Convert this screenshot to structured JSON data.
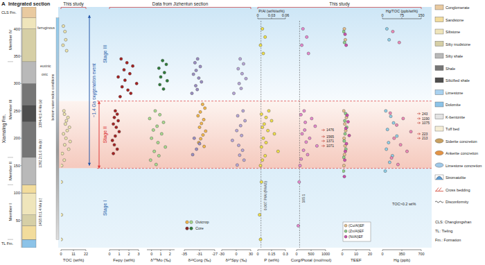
{
  "panel_label": "A",
  "title": "Integrated section",
  "headers": [
    "This study",
    "Data from Jizhentun section",
    "This study"
  ],
  "column": {
    "ylim": [
      0,
      440
    ],
    "yticks": [
      50,
      100,
      150,
      200,
      250,
      300,
      350,
      400
    ],
    "formations": [
      {
        "label": "CLS Fm.",
        "from": 420,
        "to": 440
      },
      {
        "label": "Xiamaling Fm.",
        "from": 15,
        "to": 420
      },
      {
        "label": "TL Fm.",
        "from": 0,
        "to": 15
      }
    ],
    "members": [
      {
        "label": "Member IV",
        "from": 340,
        "to": 420
      },
      {
        "label": "Member III",
        "from": 165,
        "to": 340
      },
      {
        "label": "Member II",
        "from": 115,
        "to": 165
      },
      {
        "label": "Member I",
        "from": 15,
        "to": 115
      }
    ],
    "layers": [
      {
        "from": 0,
        "to": 15,
        "lithology": "Dolomite"
      },
      {
        "from": 15,
        "to": 40,
        "lithology": "Sandstone"
      },
      {
        "from": 40,
        "to": 60,
        "lithology": "Silty mudstone"
      },
      {
        "from": 60,
        "to": 100,
        "lithology": "Siltstone"
      },
      {
        "from": 100,
        "to": 115,
        "lithology": "Sandstone"
      },
      {
        "from": 115,
        "to": 165,
        "lithology": "Silty shale"
      },
      {
        "from": 165,
        "to": 230,
        "lithology": "Shale"
      },
      {
        "from": 230,
        "to": 260,
        "lithology": "Silicified shale"
      },
      {
        "from": 260,
        "to": 300,
        "lithology": "Shale"
      },
      {
        "from": 300,
        "to": 340,
        "lithology": "Silty shale"
      },
      {
        "from": 340,
        "to": 400,
        "lithology": "Silty mudstone"
      },
      {
        "from": 400,
        "to": 420,
        "lithology": "Siltstone"
      },
      {
        "from": 420,
        "to": 440,
        "lithology": "Conglomerate"
      }
    ],
    "notes": [
      "ferruginous",
      "euxinic",
      "oxic",
      "bottom water redox conditions"
    ],
    "ages": [
      "1384.4±1.4 Ma (a)",
      "1392.2±1.0 Ma (b)",
      "1418.8±1.4 Ma (c)"
    ]
  },
  "stages": [
    {
      "label": "Stage III",
      "from": 268,
      "to": 440
    },
    {
      "label": "Stage II",
      "from": 145,
      "to": 268
    },
    {
      "label": "Stage I",
      "from": 0,
      "to": 145
    }
  ],
  "event": {
    "label": "~1.4 Ga oxygenation event",
    "from": 150,
    "to": 425
  },
  "source_legend": [
    {
      "name": "Outcrop",
      "colors": [
        "#f6b84a",
        "#a9dc8f"
      ]
    },
    {
      "name": "Core",
      "colors": [
        "#8b2323",
        "#2e7d3a"
      ]
    }
  ],
  "lithology_legend": [
    {
      "name": "Conglomerate",
      "color": "#e9caa0"
    },
    {
      "name": "Sandstone",
      "color": "#f2dc9c"
    },
    {
      "name": "Siltstone",
      "color": "#efe5bb"
    },
    {
      "name": "Silty mudstone",
      "color": "#d6cfa6"
    },
    {
      "name": "Silty shale",
      "color": "#b9b9b9"
    },
    {
      "name": "Shale",
      "color": "#767676"
    },
    {
      "name": "Silicified shale",
      "color": "#4e4e4e"
    },
    {
      "name": "Limestone",
      "color": "#a9d2f0"
    },
    {
      "name": "Dolomite",
      "color": "#8cc3e8"
    },
    {
      "name": "K-bentonite",
      "color": "#e3e3e3"
    },
    {
      "name": "Tuff bed",
      "color": "#f6eed6"
    },
    {
      "name": "Siderite concretion",
      "color": "#c9a060",
      "marker": "ellipse"
    },
    {
      "name": "Ankerite concretion",
      "color": "#e39345",
      "marker": "ellipse"
    },
    {
      "name": "Limestone concretion",
      "color": "#9fc8e8",
      "marker": "ellipse"
    },
    {
      "name": "Stromatolite",
      "color": "#5f9bd0",
      "marker": "arc"
    },
    {
      "name": "Cross bedding",
      "color": "#d04030",
      "marker": "cross"
    },
    {
      "name": "Disconformity",
      "color": "#333333",
      "marker": "wave"
    }
  ],
  "abbreviations": [
    "CLS: Changlongshan",
    "TL: Tieling",
    "Fm.: Formation"
  ],
  "chart_data": [
    {
      "type": "scatter",
      "xlabel": "TOC (wt%)",
      "xlim": [
        0,
        22
      ],
      "xticks": [
        0,
        11,
        22
      ],
      "ylim": [
        0,
        440
      ],
      "tick_labels": "x",
      "series": [
        {
          "color": "#efe6b0",
          "marker": "circle",
          "x": [
            2.1,
            3.5,
            4.2,
            1.8,
            5.0,
            2.6,
            3.1,
            6.2,
            4.8,
            3.9,
            7.5,
            5.5,
            2.2,
            4.4,
            8.1,
            3.3,
            6.8,
            1.2,
            2.9,
            0.6,
            0.3,
            0.4,
            0.2
          ],
          "y": [
            405,
            395,
            380,
            370,
            360,
            250,
            244,
            238,
            232,
            226,
            220,
            214,
            208,
            200,
            194,
            188,
            180,
            172,
            160,
            150,
            120,
            60,
            15
          ]
        }
      ]
    },
    {
      "type": "scatter",
      "xlabel": "Fepy (wt%)",
      "xlim": [
        0,
        3
      ],
      "xticks": [
        0,
        1,
        2,
        3
      ],
      "ylim": [
        0,
        440
      ],
      "tick_labels": "x",
      "series": [
        {
          "color": "#a82020",
          "marker": "circle",
          "x": [
            1.2,
            1.8,
            2.4,
            1.5,
            2.1,
            0.9,
            1.6,
            2.8,
            1.3,
            1.9,
            2.2,
            1.1,
            0.6,
            0.8,
            0.5,
            0.9,
            0.4,
            0.7,
            1.0,
            0.6,
            0.3,
            0.5,
            0.8,
            0.4
          ],
          "y": [
            345,
            338,
            332,
            325,
            318,
            312,
            306,
            300,
            294,
            288,
            282,
            276,
            250,
            244,
            238,
            232,
            226,
            220,
            212,
            204,
            196,
            188,
            180,
            172
          ]
        }
      ]
    },
    {
      "type": "scatter",
      "xlabel": "δ⁹⁸Mo (‰)",
      "xlim": [
        -0.5,
        2.5
      ],
      "xticks": [
        0,
        1,
        2
      ],
      "ylim": [
        0,
        440
      ],
      "tick_labels": "x",
      "series": [
        {
          "color": "#a9dc8f",
          "marker": "circle",
          "x": [
            0.4,
            0.9,
            -0.2,
            1.3,
            0.6,
            0.2,
            1.1,
            0.0,
            0.7,
            1.5,
            0.3,
            0.8,
            -0.1,
            0.5
          ],
          "y": [
            250,
            243,
            236,
            229,
            222,
            215,
            208,
            200,
            192,
            184,
            176,
            168,
            160,
            152
          ]
        },
        {
          "color": "#2e7d3a",
          "marker": "circle",
          "x": [
            1.2,
            1.6,
            0.8,
            1.4,
            1.0,
            1.7,
            0.9,
            1.3
          ],
          "y": [
            342,
            335,
            328,
            320,
            312,
            305,
            298,
            290
          ]
        }
      ]
    },
    {
      "type": "scatter",
      "xlabel": "δ¹³Corg (‰)",
      "xlim": [
        -35,
        -27
      ],
      "xticks": [
        -35,
        -31,
        -27
      ],
      "ylim": [
        0,
        440
      ],
      "tick_labels": "x",
      "series": [
        {
          "color": "#f6b84a",
          "marker": "circle",
          "x": [
            -30.2,
            -29.6,
            -30.8,
            -31.4,
            -29.9,
            -30.5,
            -31.0,
            -29.4,
            -30.1,
            -30.7,
            -31.2,
            -29.8
          ],
          "y": [
            262,
            255,
            248,
            241,
            234,
            227,
            220,
            213,
            206,
            199,
            192,
            185
          ]
        },
        {
          "color": "#9b8fc4",
          "marker": "circle",
          "x": [
            -31.5,
            -32.2,
            -30.8,
            -31.9,
            -32.6,
            -31.2,
            -30.5,
            -32.0,
            -31.6,
            -33.0,
            -32.4,
            -31.0,
            -31.8,
            -32.8
          ],
          "y": [
            345,
            338,
            331,
            324,
            317,
            310,
            303,
            296,
            289,
            282,
            200,
            190,
            180,
            170
          ]
        }
      ]
    },
    {
      "type": "scatter",
      "xlabel": "δ³⁴Spy (‰)",
      "xlim": [
        -30,
        30
      ],
      "xticks": [
        -30,
        0,
        30
      ],
      "ylim": [
        0,
        440
      ],
      "tick_labels": "x",
      "series": [
        {
          "color": "#b7a7d8",
          "marker": "circle",
          "x": [
            8,
            15,
            4,
            12,
            20,
            6,
            10,
            -5,
            14,
            3,
            18,
            9,
            1,
            11,
            -8,
            5,
            13,
            7,
            16,
            2
          ],
          "y": [
            345,
            336,
            327,
            318,
            309,
            300,
            291,
            282,
            250,
            241,
            232,
            223,
            214,
            205,
            196,
            187,
            178,
            169,
            160,
            151
          ]
        }
      ]
    },
    {
      "type": "scatter",
      "xlabel": "P (wt%)",
      "xlim": [
        0,
        0.3
      ],
      "xticks": [
        0,
        0.15,
        0.3
      ],
      "ylim": [
        0,
        440
      ],
      "tick_labels": "x",
      "x2label": "P/Al (wt%/wt%)",
      "x2lim": [
        0,
        0.06
      ],
      "x2ticks": [
        0,
        0.03,
        0.06
      ],
      "reference_lines": [
        {
          "value": 0.007,
          "axis": "x2",
          "label": "0.007 P/Al (PAAS)"
        }
      ],
      "series": [
        {
          "color": "#f2e24a",
          "marker": "circle",
          "x": [
            0.05,
            0.08,
            0.03,
            0.06,
            0.12,
            0.04,
            0.09,
            0.15,
            0.07,
            0.05,
            0.11,
            0.18,
            0.06,
            0.09,
            0.04,
            0.22,
            0.08,
            0.05,
            0.03,
            0.04,
            0.02,
            0.03
          ],
          "y": [
            400,
            385,
            370,
            355,
            250,
            244,
            238,
            232,
            226,
            220,
            214,
            208,
            200,
            192,
            184,
            176,
            168,
            160,
            150,
            120,
            60,
            15
          ]
        }
      ]
    },
    {
      "type": "scatter",
      "xlabel": "Corg/Ptotal (mol/mol)",
      "xlim": [
        0,
        1000
      ],
      "xticks": [
        0,
        500,
        1000
      ],
      "ylim": [
        0,
        440
      ],
      "tick_labels": "x",
      "reference_lines": [
        {
          "value": 105,
          "label": "105:1"
        }
      ],
      "outliers": [
        {
          "y": 215,
          "value": 1476
        },
        {
          "y": 203,
          "value": 1565
        },
        {
          "y": 195,
          "value": 1371
        },
        {
          "y": 186,
          "value": 1071
        }
      ],
      "series": [
        {
          "color": "#e88ad0",
          "marker": "circle",
          "x": [
            220,
            350,
            180,
            410,
            260,
            150,
            520,
            300,
            640,
            280,
            190,
            450,
            330,
            700,
            240,
            380,
            160,
            120,
            90,
            60
          ],
          "y": [
            400,
            385,
            370,
            355,
            250,
            243,
            236,
            229,
            222,
            215,
            208,
            200,
            193,
            186,
            178,
            170,
            162,
            150,
            120,
            40
          ]
        }
      ]
    },
    {
      "type": "scatter",
      "xlabel": "TEEF",
      "xlim": [
        0,
        20
      ],
      "xticks": [
        0,
        10,
        20
      ],
      "ylim": [
        0,
        440
      ],
      "tick_labels": "x",
      "series": [
        {
          "name": "(Cu/Al)EF",
          "color": "#e9c38f",
          "marker": "circle",
          "x": [
            1.5,
            2.2,
            1.1,
            3.0,
            1.8,
            2.5,
            1.3,
            2.0,
            1.6,
            1.2
          ],
          "y": [
            400,
            380,
            250,
            238,
            226,
            214,
            200,
            186,
            170,
            150
          ]
        },
        {
          "name": "(Zn/Al)EF",
          "color": "#8fd18a",
          "marker": "circle",
          "x": [
            1.0,
            1.6,
            2.4,
            1.8,
            3.2,
            2.0,
            1.4,
            2.6,
            1.1,
            0.9
          ],
          "y": [
            395,
            375,
            245,
            232,
            220,
            208,
            195,
            180,
            165,
            140
          ]
        },
        {
          "name": "(Ni/Al)EF",
          "color": "#d04fb0",
          "marker": "circle",
          "x": [
            2.0,
            2.8,
            3.5,
            4.2,
            2.6,
            5.0,
            3.0,
            2.2,
            1.8,
            1.5
          ],
          "y": [
            390,
            370,
            242,
            230,
            218,
            205,
            190,
            176,
            160,
            130
          ]
        }
      ]
    },
    {
      "type": "scatter",
      "xlabel": "Hg (ppb)",
      "xlim": [
        0,
        700
      ],
      "xticks": [
        0,
        350,
        700
      ],
      "ylim": [
        0,
        440
      ],
      "tick_labels": "x",
      "x2label": "Hg/TOC (ppb/wt%)",
      "x2lim": [
        0,
        150
      ],
      "x2ticks": [
        0,
        75,
        150
      ],
      "annotations": [
        "TOC>0.2 wt%"
      ],
      "outliers": [
        {
          "y": 245,
          "value": 243
        },
        {
          "y": 236,
          "value": 1190
        },
        {
          "y": 228,
          "value": 1075
        },
        {
          "y": 208,
          "value": 223
        },
        {
          "y": 200,
          "value": 213
        }
      ],
      "series": [
        {
          "color": "#8fd0ea",
          "marker": "circle",
          "x": [
            80,
            120,
            60,
            150,
            200,
            90,
            260,
            110,
            70,
            180,
            130,
            50
          ],
          "y": [
            400,
            380,
            250,
            240,
            228,
            216,
            204,
            192,
            180,
            168,
            156,
            140
          ]
        },
        {
          "color": "#f08ab8",
          "marker": "circle",
          "axis": "x2",
          "x": [
            40,
            65,
            30,
            80,
            55,
            110,
            45,
            70,
            95,
            35,
            60
          ],
          "y": [
            395,
            375,
            246,
            236,
            224,
            212,
            200,
            188,
            176,
            164,
            152
          ]
        }
      ]
    }
  ]
}
